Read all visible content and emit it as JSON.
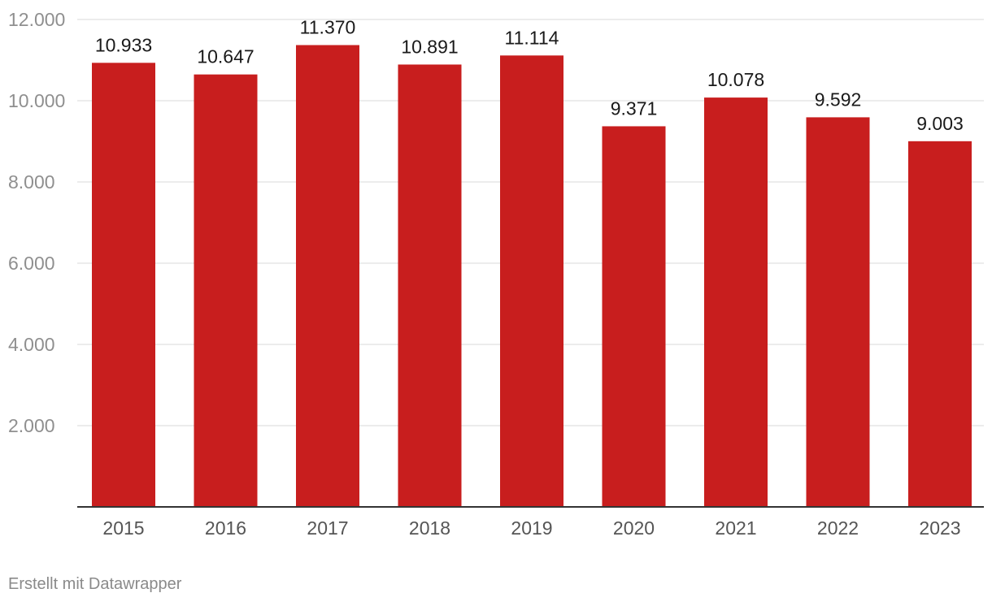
{
  "chart_data": {
    "type": "bar",
    "categories": [
      "2015",
      "2016",
      "2017",
      "2018",
      "2019",
      "2020",
      "2021",
      "2022",
      "2023"
    ],
    "values": [
      10933,
      10647,
      11370,
      10891,
      11114,
      9371,
      10078,
      9592,
      9003
    ],
    "value_labels": [
      "10.933",
      "10.647",
      "11.370",
      "10.891",
      "11.114",
      "9.371",
      "10.078",
      "9.592",
      "9.003"
    ],
    "y_ticks": [
      2000,
      4000,
      6000,
      8000,
      10000,
      12000
    ],
    "y_tick_labels": [
      "2.000",
      "4.000",
      "6.000",
      "8.000",
      "10.000",
      "12.000"
    ],
    "ylim": [
      0,
      12000
    ],
    "grid": true,
    "bar_color": "#c81e1e",
    "title": "",
    "xlabel": "",
    "ylabel": ""
  },
  "footer": {
    "credit": "Erstellt mit Datawrapper"
  }
}
